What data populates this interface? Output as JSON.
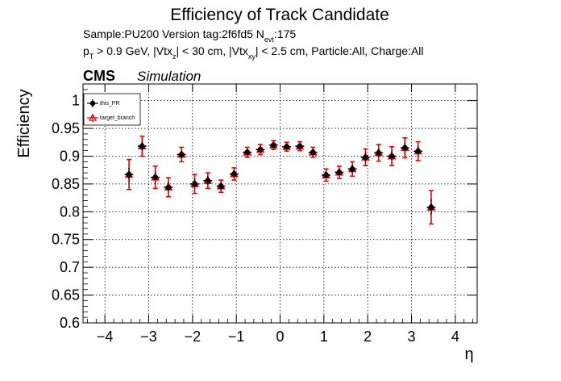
{
  "header": {
    "title": "Efficiency of Track Candidate",
    "sample_line": "Sample:PU200   Version tag:2f6fd5  N",
    "sample_sub": "evt",
    "sample_tail": ":175",
    "cuts_p": "p",
    "cuts_sub_T": "T",
    "cuts_mid1": " > 0.9 GeV, |Vtx",
    "cuts_sub_z": "z",
    "cuts_mid2": "| < 30 cm, |Vtx",
    "cuts_sub_xy": "xy",
    "cuts_tail": "| < 2.5 cm, Particle:All, Charge:All",
    "cms": "CMS",
    "simulation": "Simulation"
  },
  "colors": {
    "this_pr": "#000000",
    "target": "#e00000",
    "marker_fill": "#cc0000"
  },
  "chart_data": {
    "type": "scatter",
    "title": "Efficiency of Track Candidate",
    "xlabel": "η",
    "ylabel": "Efficiency",
    "xlim": [
      -4.5,
      4.5
    ],
    "ylim": [
      0.6,
      1.03
    ],
    "grid": true,
    "legend_position": "top-left",
    "x_ticks": [
      -4,
      -3,
      -2,
      -1,
      0,
      1,
      2,
      3,
      4
    ],
    "y_ticks": [
      0.6,
      0.65,
      0.7,
      0.75,
      0.8,
      0.85,
      0.9,
      0.95,
      1
    ],
    "x_tick_labels": [
      "−4",
      "−3",
      "−2",
      "−1",
      "0",
      "1",
      "2",
      "3",
      "4"
    ],
    "y_tick_labels": [
      "0.6",
      "0.65",
      "0.7",
      "0.75",
      "0.8",
      "0.85",
      "0.9",
      "0.95",
      "1"
    ],
    "x_halfwidth": 0.1,
    "series": [
      {
        "name": "this_PR",
        "x": [
          -3.45,
          -3.15,
          -2.85,
          -2.55,
          -2.25,
          -1.95,
          -1.65,
          -1.35,
          -1.05,
          -0.75,
          -0.45,
          -0.15,
          0.15,
          0.45,
          0.75,
          1.05,
          1.35,
          1.65,
          1.95,
          2.25,
          2.55,
          2.85,
          3.15,
          3.45
        ],
        "y": [
          0.867,
          0.918,
          0.862,
          0.844,
          0.903,
          0.85,
          0.856,
          0.846,
          0.868,
          0.907,
          0.912,
          0.92,
          0.917,
          0.918,
          0.907,
          0.866,
          0.871,
          0.877,
          0.898,
          0.906,
          0.9,
          0.915,
          0.909,
          0.808
        ],
        "yerr": [
          0.012,
          0.008,
          0.01,
          0.009,
          0.007,
          0.009,
          0.008,
          0.006,
          0.006,
          0.005,
          0.005,
          0.004,
          0.004,
          0.004,
          0.005,
          0.006,
          0.006,
          0.007,
          0.008,
          0.008,
          0.009,
          0.01,
          0.009,
          0.014
        ]
      },
      {
        "name": "target_branch",
        "x": [
          -3.45,
          -3.15,
          -2.85,
          -2.55,
          -2.25,
          -1.95,
          -1.65,
          -1.35,
          -1.05,
          -0.75,
          -0.45,
          -0.15,
          0.15,
          0.45,
          0.75,
          1.05,
          1.35,
          1.65,
          1.95,
          2.25,
          2.55,
          2.85,
          3.15,
          3.45
        ],
        "y": [
          0.867,
          0.918,
          0.862,
          0.844,
          0.903,
          0.85,
          0.856,
          0.846,
          0.868,
          0.907,
          0.912,
          0.92,
          0.917,
          0.918,
          0.907,
          0.866,
          0.871,
          0.877,
          0.898,
          0.906,
          0.9,
          0.915,
          0.909,
          0.808
        ],
        "yerr": [
          0.027,
          0.018,
          0.02,
          0.017,
          0.013,
          0.017,
          0.014,
          0.011,
          0.011,
          0.009,
          0.009,
          0.008,
          0.008,
          0.008,
          0.009,
          0.011,
          0.011,
          0.013,
          0.015,
          0.015,
          0.017,
          0.018,
          0.017,
          0.03
        ]
      }
    ]
  }
}
